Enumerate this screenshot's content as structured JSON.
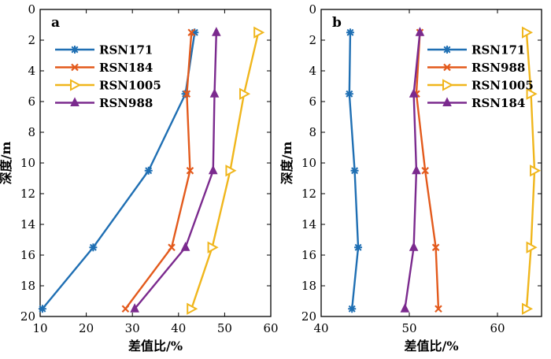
{
  "chart_data": [
    {
      "type": "line",
      "panel_label": "a",
      "xlabel": "差值比/%",
      "ylabel": "深度/m",
      "xlim": [
        10,
        60
      ],
      "ylim": [
        20,
        0
      ],
      "y_inverted": true,
      "xticks": [
        10,
        20,
        30,
        40,
        50,
        60
      ],
      "yticks": [
        0,
        2,
        4,
        6,
        8,
        10,
        12,
        14,
        16,
        18,
        20
      ],
      "legend_position": "upper-left",
      "series": [
        {
          "name": "RSN171",
          "color": "#1f6fb3",
          "marker": "asterisk",
          "x": [
            43.5,
            41.5,
            33.5,
            21.5,
            10.5
          ],
          "y": [
            1.5,
            5.5,
            10.5,
            15.5,
            19.5
          ]
        },
        {
          "name": "RSN184",
          "color": "#e35a1c",
          "marker": "x",
          "x": [
            42.8,
            41.8,
            42.5,
            38.5,
            28.5
          ],
          "y": [
            1.5,
            5.5,
            10.5,
            15.5,
            19.5
          ]
        },
        {
          "name": "RSN1005",
          "color": "#f0b61c",
          "marker": "triangle-right",
          "x": [
            57.3,
            54.2,
            51.2,
            47.3,
            42.8
          ],
          "y": [
            1.5,
            5.5,
            10.5,
            15.5,
            19.5
          ]
        },
        {
          "name": "RSN988",
          "color": "#7b2a8e",
          "marker": "triangle-up",
          "x": [
            48.2,
            47.8,
            47.5,
            41.5,
            30.5
          ],
          "y": [
            1.5,
            5.5,
            10.5,
            15.5,
            19.5
          ]
        }
      ]
    },
    {
      "type": "line",
      "panel_label": "b",
      "xlabel": "差值比/%",
      "ylabel": "深度/m",
      "xlim": [
        40,
        65
      ],
      "ylim": [
        20,
        0
      ],
      "y_inverted": true,
      "xticks": [
        40,
        50,
        60
      ],
      "yticks": [
        0,
        2,
        4,
        6,
        8,
        10,
        12,
        14,
        16,
        18,
        20
      ],
      "legend_position": "upper-right",
      "series": [
        {
          "name": "RSN171",
          "color": "#1f6fb3",
          "marker": "asterisk",
          "x": [
            43.3,
            43.2,
            43.8,
            44.2,
            43.5
          ],
          "y": [
            1.5,
            5.5,
            10.5,
            15.5,
            19.5
          ]
        },
        {
          "name": "RSN988",
          "color": "#e35a1c",
          "marker": "x",
          "x": [
            51.2,
            50.8,
            51.8,
            53.0,
            53.3
          ],
          "y": [
            1.5,
            5.5,
            10.5,
            15.5,
            19.5
          ]
        },
        {
          "name": "RSN1005",
          "color": "#f0b61c",
          "marker": "triangle-right",
          "x": [
            63.3,
            63.8,
            64.2,
            63.8,
            63.3
          ],
          "y": [
            1.5,
            5.5,
            10.5,
            15.5,
            19.5
          ]
        },
        {
          "name": "RSN184",
          "color": "#7b2a8e",
          "marker": "triangle-up",
          "x": [
            51.2,
            50.5,
            50.8,
            50.5,
            49.5
          ],
          "y": [
            1.5,
            5.5,
            10.5,
            15.5,
            19.5
          ]
        }
      ]
    }
  ]
}
